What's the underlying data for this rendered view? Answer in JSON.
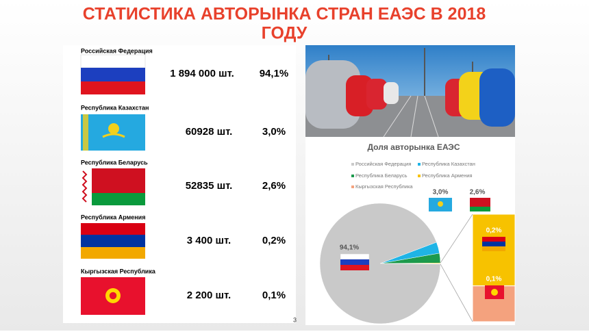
{
  "title": "СТАТИСТИКА АВТОРЫНКА СТРАН ЕАЭС В 2018 ГОДУ",
  "countries": [
    {
      "name": "Российская Федерация",
      "amount": "1 894 000 шт.",
      "share": "94,1%"
    },
    {
      "name": "Республика Казахстан",
      "amount": "60928 шт.",
      "share": "3,0%"
    },
    {
      "name": "Республика Беларусь",
      "amount": "52835 шт.",
      "share": "2,6%"
    },
    {
      "name": "Республика Армения",
      "amount": "3 400 шт.",
      "share": "0,2%"
    },
    {
      "name": "Кыргызская Республика",
      "amount": "2 200 шт.",
      "share": "0,1%"
    }
  ],
  "page_number": "3",
  "chart_data": {
    "type": "bar-of-pie",
    "title": "Доля авторынка ЕАЭС",
    "categories": [
      "Российская Федерация",
      "Республика Казахстан",
      "Республика Беларусь",
      "Республика Армения",
      "Кыргызская Республика"
    ],
    "values": [
      94.1,
      3.0,
      2.6,
      0.2,
      0.1
    ],
    "value_labels": [
      "94,1%",
      "3,0%",
      "2,6%",
      "0,2%",
      "0,1%"
    ],
    "colors": [
      "#c9c9c9",
      "#1fb4e6",
      "#1c9a4c",
      "#f7c200",
      "#f4a27e"
    ]
  }
}
